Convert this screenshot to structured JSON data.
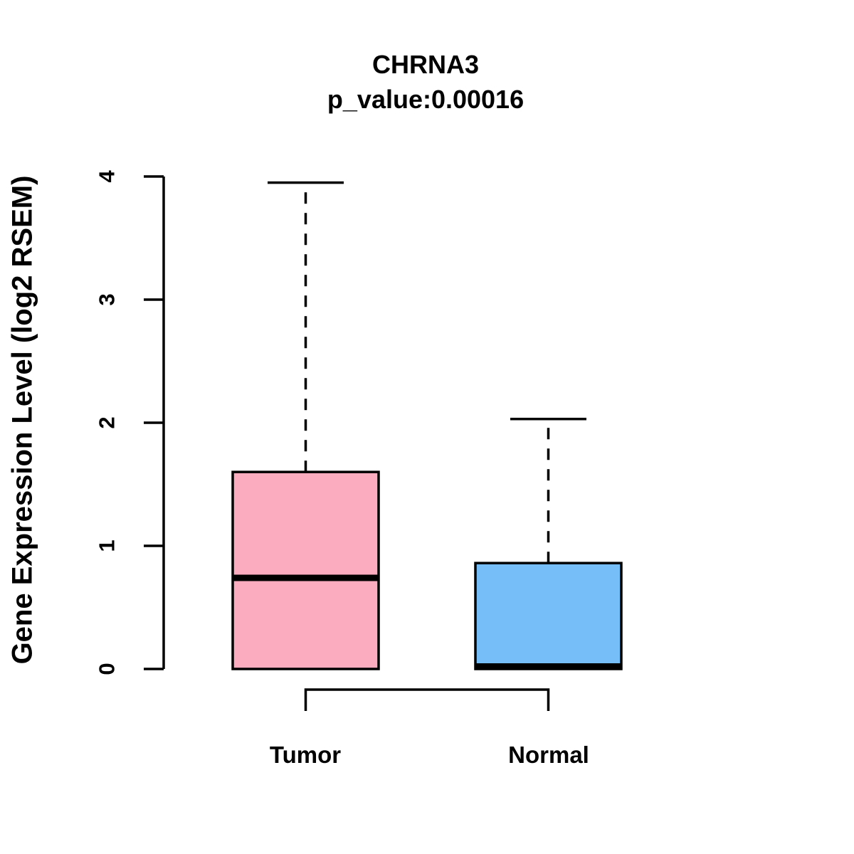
{
  "title": "CHRNA3",
  "subtitle": "p_value:0.00016",
  "ylabel": "Gene Expression Level (log2 RSEM)",
  "colors": {
    "background": "#FFFFFF",
    "axis": "#000000",
    "box_border": "#000000",
    "tumor_fill": "#FCACBF",
    "normal_fill": "#75BEF8"
  },
  "chart_data": {
    "type": "boxplot",
    "title": "CHRNA3",
    "subtitle": "p_value:0.00016",
    "ylabel": "Gene Expression Level (log2 RSEM)",
    "xlabel": "",
    "categories": [
      "Tumor",
      "Normal"
    ],
    "yticks": [
      "0",
      "1",
      "2",
      "3",
      "4"
    ],
    "ylim": [
      0,
      4
    ],
    "grid": false,
    "legend": false,
    "series": [
      {
        "name": "Tumor",
        "min": 0,
        "q1": 0,
        "median": 0.74,
        "q3": 1.6,
        "max": 3.95,
        "color": "#FCACBF"
      },
      {
        "name": "Normal",
        "min": 0,
        "q1": 0,
        "median": 0.02,
        "q3": 0.86,
        "max": 2.03,
        "color": "#75BEF8"
      }
    ],
    "whisker_style": "dashed",
    "comparison_bracket": {
      "from": "Tumor",
      "to": "Normal"
    }
  }
}
